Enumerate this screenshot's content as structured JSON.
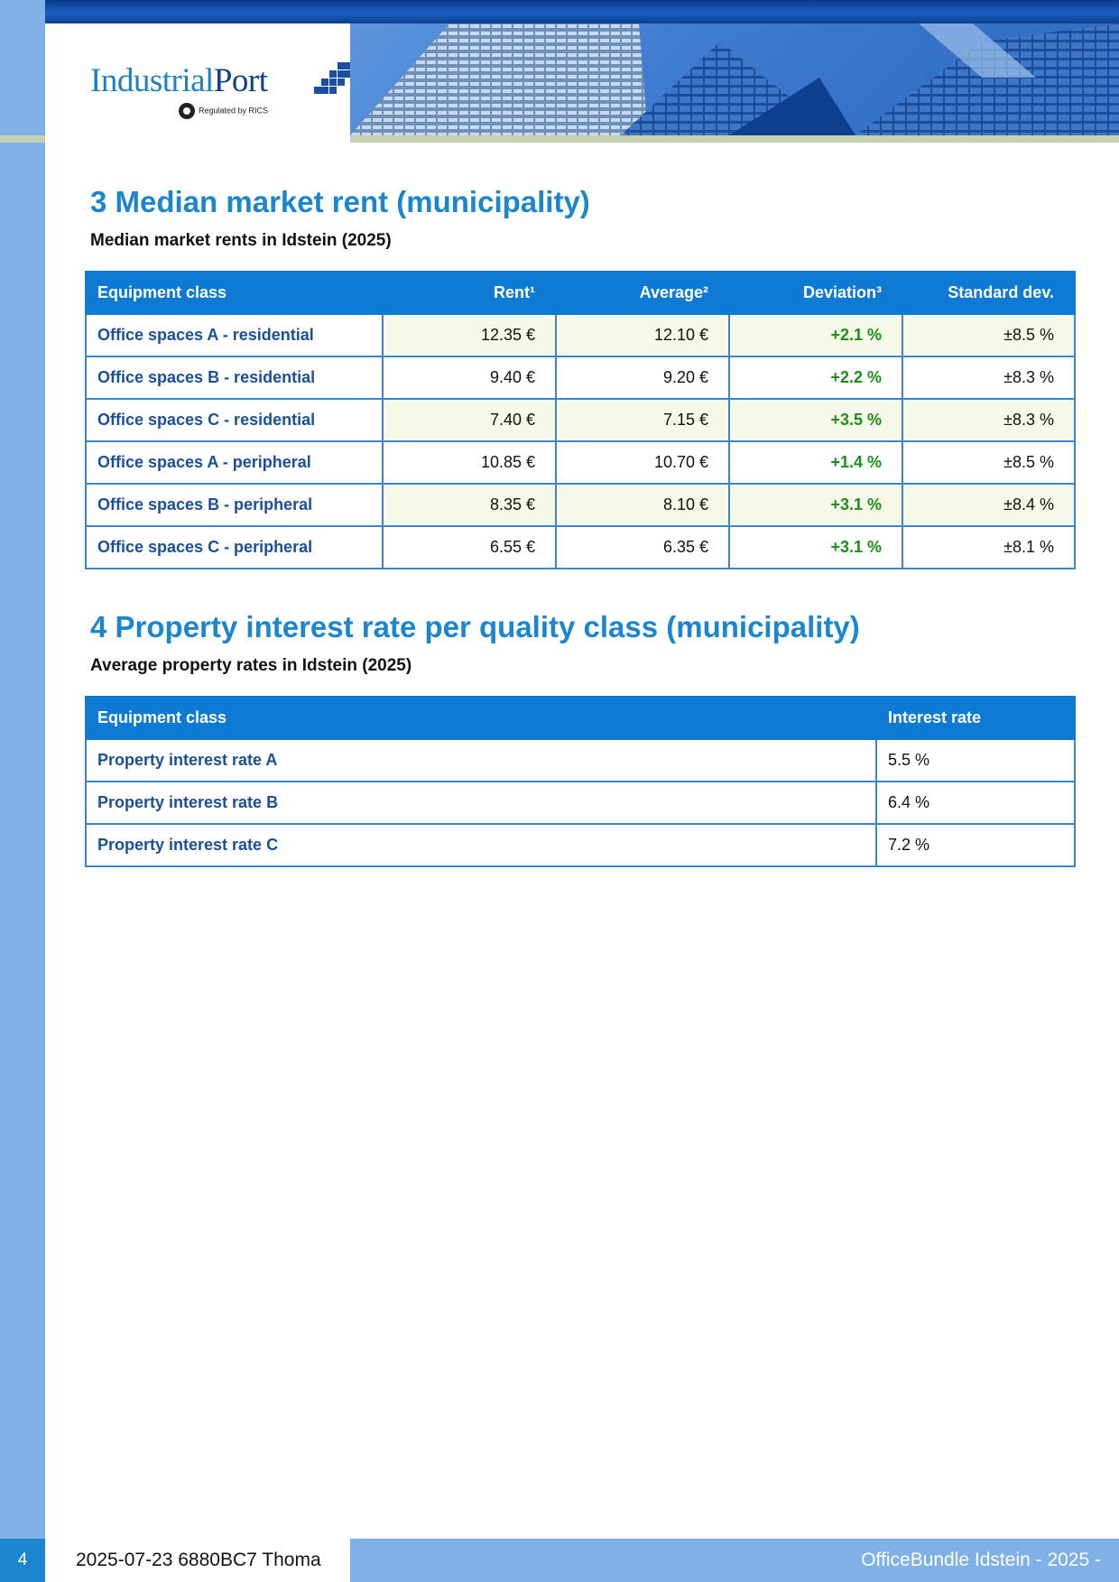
{
  "header": {
    "logo_part1": "Industrial",
    "logo_part2": "Port",
    "logo_tagline": "Regulated by RICS",
    "brand_colors": {
      "primary": "#1b86cf",
      "dark": "#0d3f8f",
      "rail": "#7fb0e6"
    }
  },
  "section3": {
    "title": "3 Median market rent (municipality)",
    "subtitle": "Median market rents in Idstein (2025)",
    "columns": [
      "Equipment class",
      "Rent¹",
      "Average²",
      "Deviation³",
      "Standard dev."
    ],
    "rows": [
      [
        "Office spaces A - residential",
        "12.35 €",
        "12.10 €",
        "+2.1 %",
        "±8.5 %"
      ],
      [
        "Office spaces B - residential",
        "9.40 €",
        "9.20 €",
        "+2.2 %",
        "±8.3 %"
      ],
      [
        "Office spaces C - residential",
        "7.40 €",
        "7.15 €",
        "+3.5 %",
        "±8.3 %"
      ],
      [
        "Office spaces A - peripheral",
        "10.85 €",
        "10.70 €",
        "+1.4 %",
        "±8.5 %"
      ],
      [
        "Office spaces B - peripheral",
        "8.35 €",
        "8.10 €",
        "+3.1 %",
        "±8.4 %"
      ],
      [
        "Office spaces C - peripheral",
        "6.55 €",
        "6.35 €",
        "+3.1 %",
        "±8.1 %"
      ]
    ]
  },
  "section4": {
    "title": "4 Property interest rate per quality class (municipality)",
    "subtitle": "Average property rates in Idstein (2025)",
    "columns": [
      "Equipment class",
      "Interest rate"
    ],
    "rows": [
      [
        "Property interest rate A",
        "5.5 %"
      ],
      [
        "Property interest rate B",
        "6.4 %"
      ],
      [
        "Property interest rate C",
        "7.2 %"
      ]
    ]
  },
  "footer": {
    "page_number": "4",
    "meta": "2025-07-23 6880BC7 Thoma",
    "doc_title": "OfficeBundle Idstein - 2025 -"
  }
}
